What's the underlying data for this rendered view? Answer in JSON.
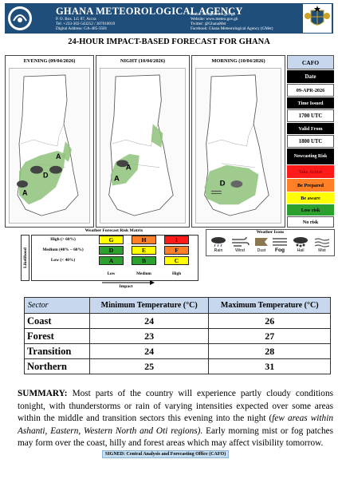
{
  "header": {
    "agency_name": "GHANA METEOROLOGICAL AGENCY",
    "address": [
      "P. O. Box. LG 87, Accra",
      "Tel: +233-302-543252 / 307010019",
      "Digital Address: GA-485-3581"
    ],
    "contacts": [
      "Email: info@meteo.gov.gh",
      "Website: www.meteo.gov.gh",
      "Twitter: @GhanaMet",
      "Facebook: Ghana Meteorological Agency (GMet)"
    ],
    "brand_color": "#1f4e7a"
  },
  "page_title": "24-HOUR IMPACT-BASED FORECAST FOR GHANA",
  "panels": [
    {
      "title": "EVENING (09/04/2026)"
    },
    {
      "title": "NIGHT (10/04/2026)"
    },
    {
      "title": "MORNING (10/04/2026)"
    }
  ],
  "legend": {
    "header": "CAFO",
    "date_label": "Date",
    "date_value": "09-APR-2026",
    "time_issued_label": "Time Issued",
    "time_issued_value": "1700 UTC",
    "valid_from_label": "Valid From",
    "valid_from_value": "1800 UTC",
    "nowcasting_label": "Nowcasting Risk",
    "levels": [
      {
        "label": "Take Action",
        "color": "#ff1a1a"
      },
      {
        "label": "Be Prepared",
        "color": "#ff7f27"
      },
      {
        "label": "Be aware",
        "color": "#ffff00"
      },
      {
        "label": "Low risk",
        "color": "#2ca02c"
      },
      {
        "label": "No risk",
        "color": "#ffffff"
      }
    ]
  },
  "risk_matrix": {
    "title": "Weather Forecast Risk Matrix",
    "likelihood_label": "Likelihood",
    "impact_label": "Impact",
    "rows": [
      {
        "label": "High (> 60%)",
        "cells": [
          "G",
          "H",
          "I"
        ]
      },
      {
        "label": "Medium (40% – 60%)",
        "cells": [
          "D",
          "E",
          "F"
        ]
      },
      {
        "label": "Low (< 40%)",
        "cells": [
          "A",
          "B",
          "C"
        ]
      }
    ],
    "columns": [
      "Low",
      "Medium",
      "High"
    ]
  },
  "weather_icons": {
    "title": "Weather Icons",
    "items": [
      "Rain",
      "Wind",
      "Dust",
      "Fog",
      "Hail",
      "Mist"
    ]
  },
  "temperature_table": {
    "headers": [
      "Sector",
      "Minimum Temperature (°C)",
      "Maximum Temperature (°C)"
    ],
    "rows": [
      {
        "sector": "Coast",
        "min": "24",
        "max": "26"
      },
      {
        "sector": "Forest",
        "min": "23",
        "max": "27"
      },
      {
        "sector": "Transition",
        "min": "24",
        "max": "28"
      },
      {
        "sector": "Northern",
        "min": "25",
        "max": "31"
      }
    ]
  },
  "summary": {
    "lead": "SUMMARY:",
    "text1": " Most parts of the country will experience partly cloudy conditions tonight, with thunderstorms or rain of varying intensities expected over some areas within the middle and transition sectors this evening into the night (",
    "italic": "few areas within Ashanti, Eastern, Western North and Oti regions).",
    "text2": " Early morning mist or fog patches may form over the coast, hilly and forest areas which may affect visibility tomorrow."
  },
  "signed": "SIGNED: Central Analysis and Forecasting Office (CAFO)",
  "risk_colors": {
    "G": "#ffff00",
    "H": "#ff7f27",
    "I": "#ff1a1a",
    "D": "#2ca02c",
    "E": "#ffff00",
    "F": "#ff7f27",
    "A": "#2ca02c",
    "B": "#2ca02c",
    "C": "#ffff00"
  }
}
